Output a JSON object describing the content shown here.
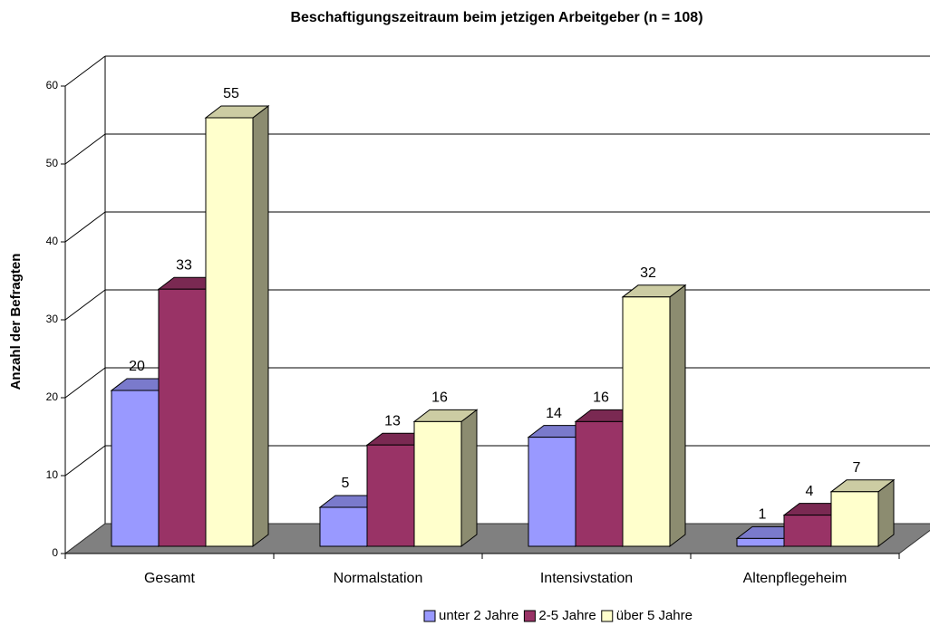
{
  "chart_data": {
    "type": "bar3d",
    "title": "Beschaftigungszeitraum beim jetzigen Arbeitgeber (n = 108)",
    "y_label": "Anzahl der Befragten",
    "categories": [
      "Gesamt",
      "Normalstation",
      "Intensivstation",
      "Altenpflegeheim"
    ],
    "series": [
      {
        "name": "unter 2 Jahre",
        "color": "#9999ff",
        "values": [
          20,
          5,
          14,
          1
        ]
      },
      {
        "name": "2-5 Jahre",
        "color": "#993366",
        "values": [
          33,
          13,
          16,
          4
        ]
      },
      {
        "name": "über 5 Jahre",
        "color": "#ffffcc",
        "values": [
          55,
          16,
          32,
          7
        ]
      }
    ],
    "ylim": [
      0,
      60
    ],
    "yticks": [
      0,
      10,
      20,
      30,
      40,
      50,
      60
    ],
    "grid": true,
    "legend": "bottom"
  }
}
